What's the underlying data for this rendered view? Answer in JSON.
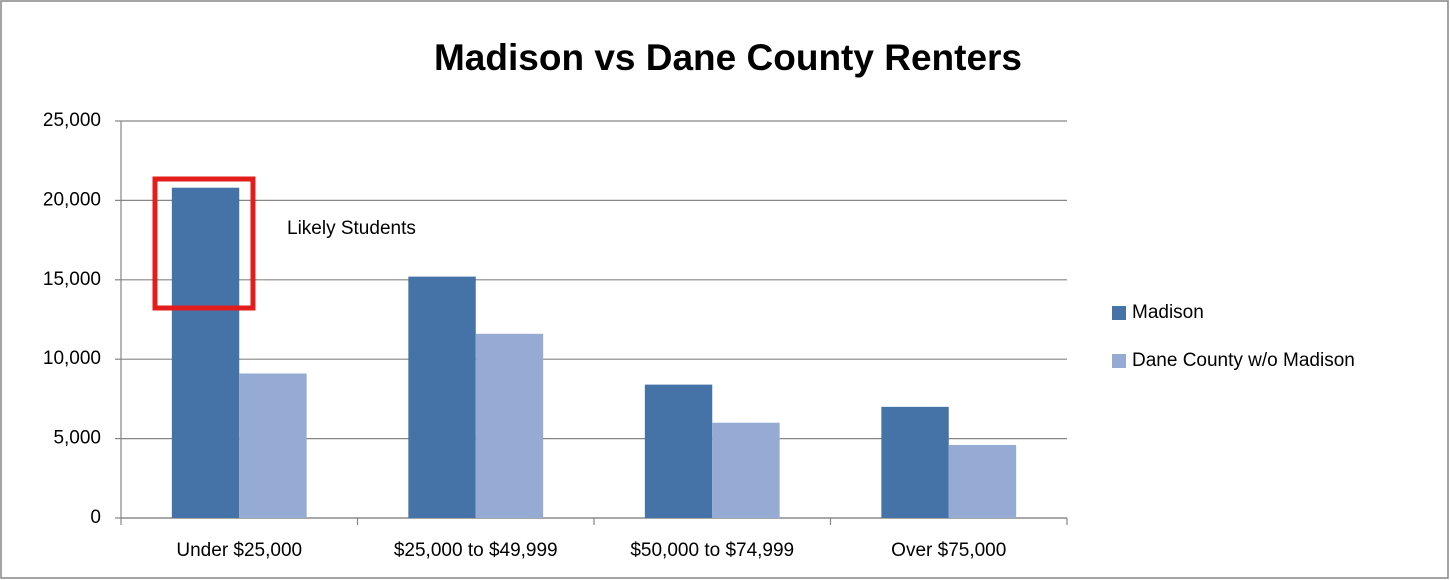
{
  "chart_data": {
    "type": "bar",
    "title": "Madison vs Dane County Renters",
    "categories": [
      "Under $25,000",
      "$25,000 to $49,999",
      "$50,000 to $74,999",
      "Over $75,000"
    ],
    "series": [
      {
        "name": "Madison",
        "color": "#4572a7",
        "values": [
          20800,
          15200,
          8400,
          7000
        ]
      },
      {
        "name": "Dane County w/o Madison",
        "color": "#95abd3",
        "values": [
          9100,
          11600,
          6000,
          4600
        ]
      }
    ],
    "ylim": [
      0,
      25000
    ],
    "yticks": [
      0,
      {
        "value": 5000,
        "label": "5,000"
      },
      {
        "value": 10000,
        "label": "10,000"
      },
      {
        "value": 15000,
        "label": "15,000"
      },
      {
        "value": 20000,
        "label": "20,000"
      },
      {
        "value": 25000,
        "label": "25,000"
      }
    ],
    "grid": true,
    "legend": "right",
    "annotation": "Likely Students"
  }
}
